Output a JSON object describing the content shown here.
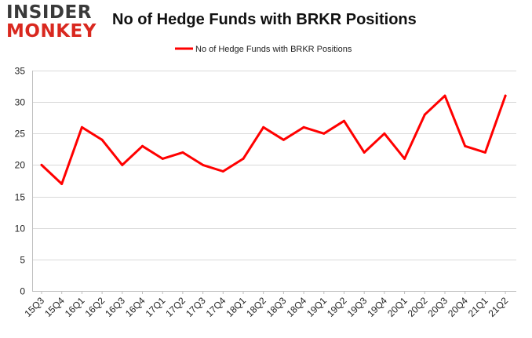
{
  "logo": {
    "line1": "INSIDER",
    "line2": "MONKEY"
  },
  "colors": {
    "series": "#ff0000",
    "grid": "#d9d9d9",
    "axis": "#bfbfbf",
    "logo_dark": "#3a3a3a",
    "logo_red": "#d9281f"
  },
  "chart_data": {
    "type": "line",
    "title": "No of Hedge Funds with BRKR Positions",
    "xlabel": "",
    "ylabel": "",
    "categories": [
      "15Q3",
      "15Q4",
      "16Q1",
      "16Q2",
      "16Q3",
      "16Q4",
      "17Q1",
      "17Q2",
      "17Q3",
      "17Q4",
      "18Q1",
      "18Q2",
      "18Q3",
      "18Q4",
      "19Q1",
      "19Q2",
      "19Q3",
      "19Q4",
      "20Q1",
      "20Q2",
      "20Q3",
      "20Q4",
      "21Q1",
      "21Q2"
    ],
    "series": [
      {
        "name": "No of Hedge Funds with BRKR Positions",
        "values": [
          20,
          17,
          26,
          24,
          20,
          23,
          21,
          22,
          20,
          19,
          21,
          26,
          24,
          26,
          25,
          27,
          22,
          25,
          21,
          28,
          31,
          23,
          22,
          31
        ]
      }
    ],
    "ylim": [
      0,
      35
    ],
    "yticks": [
      0,
      5,
      10,
      15,
      20,
      25,
      30,
      35
    ],
    "grid": true,
    "legend_position": "top-center"
  }
}
